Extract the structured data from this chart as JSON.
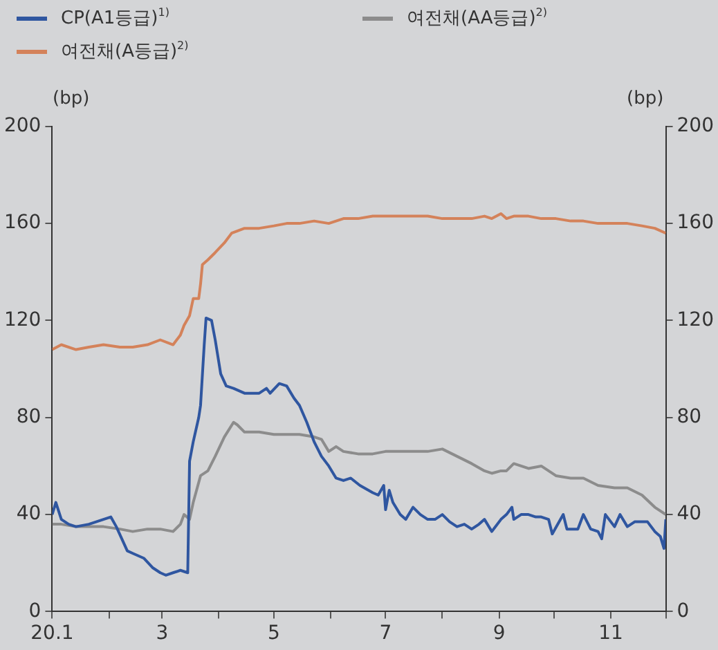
{
  "chart_data": {
    "type": "line",
    "ylabel": "(bp)",
    "y2label": "(bp)",
    "legend": "top left",
    "grid": false,
    "marker": "none",
    "line_style": "solid",
    "xlim": [
      "--01-01",
      "--12-01"
    ],
    "xticks": [
      {
        "value": "--01-01",
        "label": "20.1"
      },
      {
        "value": "--02-01",
        "label": null
      },
      {
        "value": "--03-01",
        "label": "3"
      },
      {
        "value": "--04-01",
        "label": null
      },
      {
        "value": "--05-01",
        "label": "5"
      },
      {
        "value": "--06-01",
        "label": null
      },
      {
        "value": "--07-01",
        "label": "7"
      },
      {
        "value": "--08-01",
        "label": null
      },
      {
        "value": "--09-01",
        "label": "9"
      },
      {
        "value": "--10-01",
        "label": null
      },
      {
        "value": "--11-01",
        "label": "11"
      },
      {
        "value": "--12-01",
        "label": null
      }
    ],
    "ylim": [
      0,
      200
    ],
    "yticks": [
      0,
      40,
      80,
      120,
      160,
      200
    ],
    "y2lim": [
      0,
      200
    ],
    "y2ticks": [
      0,
      40,
      80,
      120,
      160,
      200
    ],
    "series": [
      {
        "name": "CP(A1등급)$^{1)}$",
        "color": "#2f56a0",
        "x": [
          "--01-01",
          "--01-03",
          "--01-06",
          "--01-10",
          "--01-14",
          "--01-21",
          "--01-29",
          "--02-02",
          "--02-05",
          "--02-08",
          "--02-11",
          "--02-14",
          "--02-20",
          "--02-25",
          "--02-29",
          "--03-03",
          "--03-07",
          "--03-11",
          "--03-15",
          "--03-16",
          "--03-18",
          "--03-21",
          "--03-22",
          "--03-24",
          "--03-25",
          "--03-28",
          "--03-30",
          "--04-02",
          "--04-05",
          "--04-09",
          "--04-15",
          "--04-23",
          "--04-27",
          "--04-29",
          "--05-04",
          "--05-08",
          "--05-12",
          "--05-15",
          "--05-19",
          "--05-23",
          "--05-27",
          "--05-31",
          "--06-04",
          "--06-08",
          "--06-12",
          "--06-17",
          "--06-24",
          "--06-27",
          "--06-30",
          "--07-01",
          "--07-03",
          "--07-05",
          "--07-09",
          "--07-12",
          "--07-16",
          "--07-20",
          "--07-24",
          "--07-28",
          "--08-01",
          "--08-05",
          "--08-09",
          "--08-13",
          "--08-17",
          "--08-21",
          "--08-24",
          "--08-28",
          "--09-02",
          "--09-05",
          "--09-08",
          "--09-09",
          "--09-13",
          "--09-17",
          "--09-21",
          "--09-24",
          "--09-28",
          "--09-30",
          "--10-06",
          "--10-08",
          "--10-14",
          "--10-17",
          "--10-21",
          "--10-25",
          "--10-27",
          "--10-29",
          "--11-03",
          "--11-06",
          "--11-10",
          "--11-14",
          "--11-18",
          "--11-21",
          "--11-25",
          "--11-28",
          "--11-30",
          "--12-01"
        ],
        "values": [
          40,
          45,
          38,
          36,
          35,
          36,
          38,
          39,
          35,
          30,
          25,
          24,
          22,
          18,
          16,
          15,
          16,
          17,
          16,
          62,
          70,
          80,
          85,
          110,
          121,
          120,
          112,
          98,
          93,
          92,
          90,
          90,
          92,
          90,
          94,
          93,
          88,
          85,
          78,
          70,
          64,
          60,
          55,
          54,
          55,
          52,
          49,
          48,
          52,
          42,
          50,
          45,
          40,
          38,
          43,
          40,
          38,
          38,
          40,
          37,
          35,
          36,
          34,
          36,
          38,
          33,
          38,
          40,
          43,
          38,
          40,
          40,
          39,
          39,
          38,
          32,
          40,
          34,
          34,
          40,
          34,
          33,
          30,
          40,
          35,
          40,
          35,
          37,
          37,
          37,
          33,
          31,
          26,
          38
        ]
      },
      {
        "name": "여전채(AA등급)$^{2)}$",
        "color": "#8c8c8c",
        "x": [
          "--01-01",
          "--01-06",
          "--01-14",
          "--01-21",
          "--01-29",
          "--02-07",
          "--02-14",
          "--02-22",
          "--02-29",
          "--03-07",
          "--03-11",
          "--03-13",
          "--03-16",
          "--03-18",
          "--03-22",
          "--03-26",
          "--03-30",
          "--04-04",
          "--04-09",
          "--04-11",
          "--04-15",
          "--04-23",
          "--05-01",
          "--05-08",
          "--05-15",
          "--05-23",
          "--05-27",
          "--05-31",
          "--06-04",
          "--06-08",
          "--06-16",
          "--06-24",
          "--07-01",
          "--07-09",
          "--07-16",
          "--07-24",
          "--08-01",
          "--08-09",
          "--08-17",
          "--08-24",
          "--08-28",
          "--09-02",
          "--09-05",
          "--09-09",
          "--09-17",
          "--09-24",
          "--10-02",
          "--10-10",
          "--10-17",
          "--10-25",
          "--11-03",
          "--11-10",
          "--11-18",
          "--11-25",
          "--12-01"
        ],
        "values": [
          36,
          36,
          35,
          35,
          35,
          34,
          33,
          34,
          34,
          33,
          36,
          40,
          38,
          45,
          56,
          58,
          64,
          72,
          78,
          77,
          74,
          74,
          73,
          73,
          73,
          72,
          71,
          66,
          68,
          66,
          65,
          65,
          66,
          66,
          66,
          66,
          67,
          64,
          61,
          58,
          57,
          58,
          58,
          61,
          59,
          60,
          56,
          55,
          55,
          52,
          51,
          51,
          48,
          43,
          40
        ]
      },
      {
        "name": "여전채(A등급)$^{2)}$",
        "color": "#d4825a",
        "x": [
          "--01-01",
          "--01-06",
          "--01-14",
          "--01-21",
          "--01-29",
          "--02-07",
          "--02-14",
          "--02-22",
          "--02-29",
          "--03-07",
          "--03-11",
          "--03-13",
          "--03-16",
          "--03-18",
          "--03-21",
          "--03-22",
          "--03-23",
          "--03-26",
          "--03-30",
          "--04-04",
          "--04-08",
          "--04-15",
          "--04-23",
          "--05-01",
          "--05-08",
          "--05-15",
          "--05-23",
          "--05-31",
          "--06-08",
          "--06-16",
          "--06-24",
          "--07-01",
          "--07-09",
          "--07-16",
          "--07-24",
          "--08-01",
          "--08-09",
          "--08-17",
          "--08-24",
          "--08-28",
          "--09-02",
          "--09-05",
          "--09-09",
          "--09-17",
          "--09-24",
          "--10-02",
          "--10-10",
          "--10-17",
          "--10-25",
          "--11-03",
          "--11-10",
          "--11-18",
          "--11-25",
          "--12-01"
        ],
        "values": [
          108,
          110,
          108,
          109,
          110,
          109,
          109,
          110,
          112,
          110,
          114,
          118,
          122,
          129,
          129,
          135,
          143,
          145,
          148,
          152,
          156,
          158,
          158,
          159,
          160,
          160,
          161,
          160,
          162,
          162,
          163,
          163,
          163,
          163,
          163,
          162,
          162,
          162,
          163,
          162,
          164,
          162,
          163,
          163,
          162,
          162,
          161,
          161,
          160,
          160,
          160,
          159,
          158,
          156
        ]
      }
    ]
  }
}
